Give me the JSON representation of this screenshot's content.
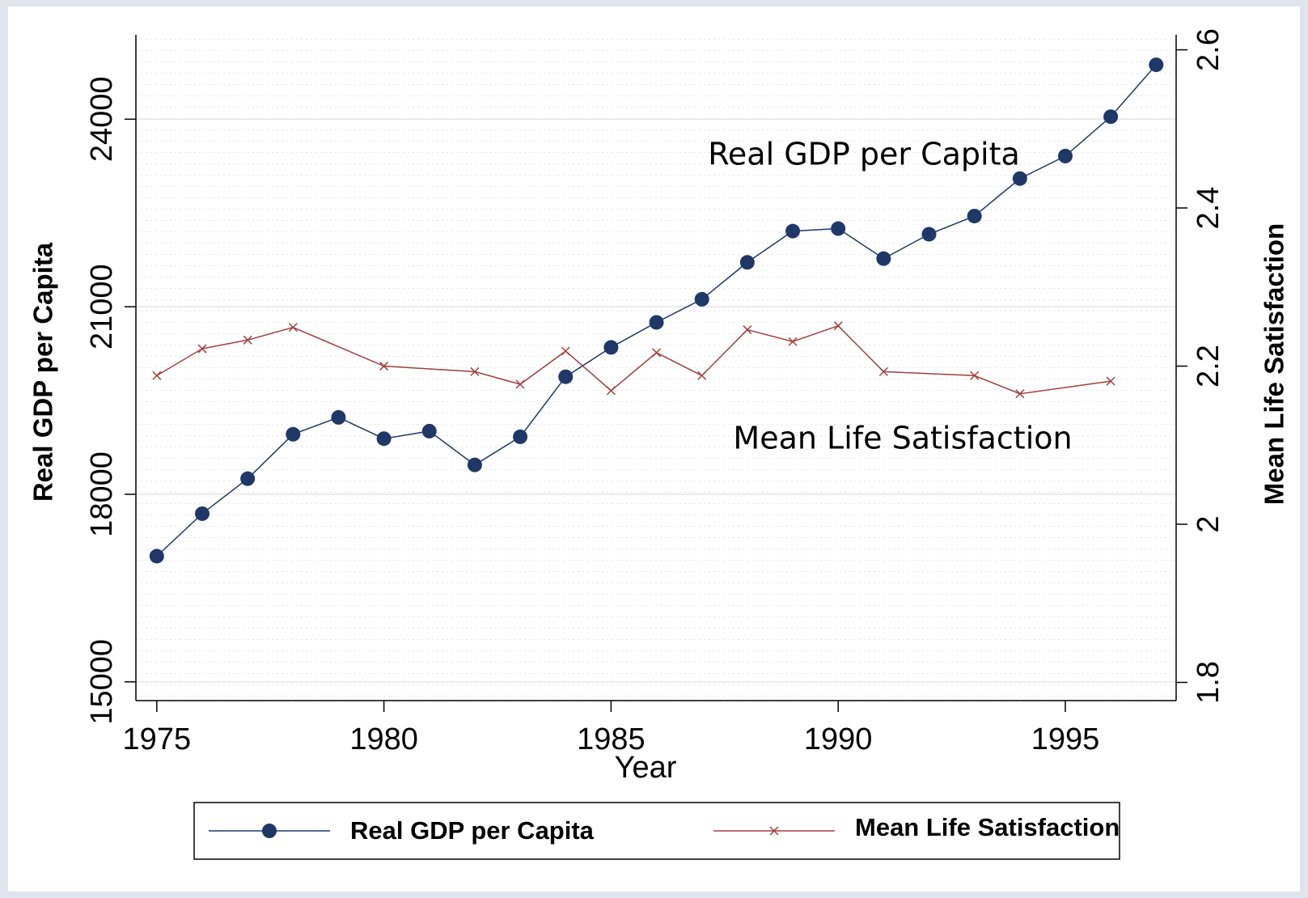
{
  "chart_data": {
    "type": "line",
    "x_label": "Year",
    "y_label": "Real GDP per Capita",
    "y2_label": "Mean Life Satisfaction",
    "xlim": [
      1974.54,
      1997.44
    ],
    "xticks": [
      1975,
      1980,
      1985,
      1990,
      1995
    ],
    "ylim": [
      14700,
      25350
    ],
    "yticks": [
      15000,
      18000,
      21000,
      24000
    ],
    "y2lim": [
      1.777,
      2.619
    ],
    "y2ticks": [
      1.8,
      2,
      2.2,
      2.4,
      2.6
    ],
    "grid": true,
    "annotations": [
      "Real GDP per Capita",
      "Mean Life Satisfaction"
    ],
    "series": [
      {
        "name": "Real GDP per Capita",
        "color": "#1f3868",
        "marker": "circle",
        "x": [
          1975,
          1976,
          1977,
          1978,
          1979,
          1980,
          1981,
          1982,
          1983,
          1984,
          1985,
          1986,
          1987,
          1988,
          1989,
          1990,
          1991,
          1992,
          1993,
          1994,
          1995,
          1996,
          1997
        ],
        "values": [
          17010,
          17690,
          18250,
          18960,
          19230,
          18890,
          19010,
          18470,
          18920,
          19880,
          20350,
          20750,
          21120,
          21710,
          22210,
          22250,
          21770,
          22160,
          22450,
          23050,
          23410,
          24040,
          24870
        ]
      },
      {
        "name": "Mean Life Satisfaction",
        "color": "#a0403c",
        "marker": "x",
        "axis": "y2",
        "x": [
          1975,
          1976,
          1977,
          1978,
          1980,
          1982,
          1983,
          1984,
          1985,
          1986,
          1987,
          1988,
          1989,
          1990,
          1991,
          1993,
          1994,
          1996
        ],
        "values": [
          2.188,
          2.222,
          2.233,
          2.249,
          2.2,
          2.193,
          2.177,
          2.219,
          2.169,
          2.217,
          2.188,
          2.246,
          2.231,
          2.251,
          2.193,
          2.188,
          2.165,
          2.181
        ]
      }
    ]
  }
}
